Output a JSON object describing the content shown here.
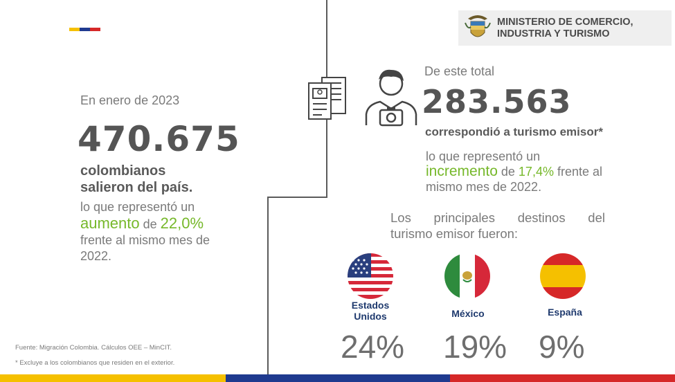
{
  "logo": {
    "line1": "MINISTERIO DE COMERCIO,",
    "line2": "INDUSTRIA Y TURISMO"
  },
  "left": {
    "intro": "En enero de 2023",
    "big_number": "470.675",
    "bold_line1": "colombianos",
    "bold_line2": "salieron del país.",
    "text1": "lo que representó un",
    "highlight_word": "aumento",
    "text_de": " de ",
    "highlight_pct": "22,0%",
    "text2": "frente al mismo mes de",
    "text3": "2022."
  },
  "right": {
    "intro": "De este total",
    "big_number": "283.563",
    "bold_line": "correspondió a turismo emisor*",
    "text1": "lo que representó un",
    "highlight_word": "incremento",
    "text_de": " de ",
    "highlight_pct": "17,4%",
    "text_after": " frente al",
    "text2": "mismo mes de 2022.",
    "destinos_line1": "Los principales destinos del",
    "destinos_line2": "turismo emisor fueron:"
  },
  "destinations": [
    {
      "name_line1": "Estados",
      "name_line2": "Unidos",
      "pct": "24%",
      "icon": "usa-flag-icon"
    },
    {
      "name_line1": "México",
      "name_line2": "",
      "pct": "19%",
      "icon": "mexico-flag-icon"
    },
    {
      "name_line1": "España",
      "name_line2": "",
      "pct": "9%",
      "icon": "spain-flag-icon"
    }
  ],
  "footer": {
    "source": "Fuente: Migración Colombia. Cálculos OEE – MinCIT.",
    "note": "* Excluye a los colombianos que residen en el exterior."
  },
  "colors": {
    "yellow": "#f5c000",
    "blue": "#1f3a8f",
    "red": "#d62828",
    "green": "#76b82a"
  }
}
